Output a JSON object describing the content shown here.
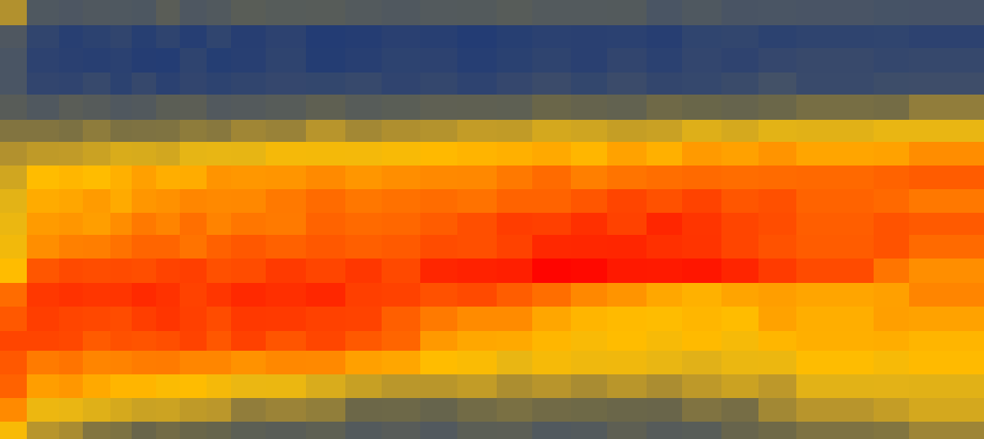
{
  "chart_data": {
    "type": "heatmap",
    "title": "",
    "xlabel": "",
    "ylabel": "",
    "legend": "none",
    "grid": false,
    "n_cols": 26,
    "n_rows": 19,
    "grid_dims": [
      26,
      19
    ],
    "color_stops": [
      {
        "v": 0.0,
        "hex": "#233C74"
      },
      {
        "v": 0.18,
        "hex": "#4A5564"
      },
      {
        "v": 0.32,
        "hex": "#6A6649"
      },
      {
        "v": 0.45,
        "hex": "#B8952C"
      },
      {
        "v": 0.55,
        "hex": "#E8B614"
      },
      {
        "v": 0.62,
        "hex": "#FFBC00"
      },
      {
        "v": 0.72,
        "hex": "#FF9400"
      },
      {
        "v": 0.82,
        "hex": "#FF6200"
      },
      {
        "v": 0.92,
        "hex": "#FF3200"
      },
      {
        "v": 1.0,
        "hex": "#FF0000"
      }
    ],
    "rows": [
      {
        "left": 0.44,
        "peaks": [
          [
            0.0,
            0.22
          ],
          [
            0.5,
            0.22
          ],
          [
            1.0,
            0.17
          ]
        ]
      },
      {
        "left": 0.2,
        "peaks": [
          [
            0.0,
            0.05
          ],
          [
            0.5,
            0.02
          ],
          [
            1.0,
            0.06
          ]
        ]
      },
      {
        "left": 0.18,
        "peaks": [
          [
            0.0,
            0.04
          ],
          [
            0.5,
            0.02
          ],
          [
            1.0,
            0.08
          ]
        ]
      },
      {
        "left": 0.18,
        "peaks": [
          [
            0.0,
            0.07
          ],
          [
            0.5,
            0.06
          ],
          [
            1.0,
            0.14
          ]
        ]
      },
      {
        "left": 0.24,
        "peaks": [
          [
            0.0,
            0.22
          ],
          [
            0.5,
            0.26
          ],
          [
            1.0,
            0.36
          ]
        ]
      },
      {
        "left": 0.36,
        "peaks": [
          [
            0.0,
            0.34
          ],
          [
            0.5,
            0.44
          ],
          [
            1.0,
            0.58
          ]
        ]
      },
      {
        "left": 0.44,
        "peaks": [
          [
            0.0,
            0.45
          ],
          [
            0.5,
            0.62
          ],
          [
            1.0,
            0.72
          ]
        ]
      },
      {
        "left": 0.5,
        "peaks": [
          [
            0.0,
            0.62
          ],
          [
            0.5,
            0.76
          ],
          [
            1.0,
            0.84
          ]
        ]
      },
      {
        "left": 0.54,
        "peaks": [
          [
            0.0,
            0.66
          ],
          [
            0.5,
            0.8
          ],
          [
            0.8,
            0.88
          ],
          [
            1.0,
            0.8
          ]
        ]
      },
      {
        "left": 0.56,
        "peaks": [
          [
            0.0,
            0.7
          ],
          [
            0.5,
            0.84
          ],
          [
            0.75,
            0.92
          ],
          [
            1.0,
            0.82
          ]
        ]
      },
      {
        "left": 0.58,
        "peaks": [
          [
            0.0,
            0.76
          ],
          [
            0.5,
            0.86
          ],
          [
            0.75,
            0.95
          ],
          [
            1.0,
            0.82
          ]
        ]
      },
      {
        "left": 0.62,
        "peaks": [
          [
            0.0,
            0.84
          ],
          [
            0.5,
            0.9
          ],
          [
            0.65,
            1.0
          ],
          [
            0.8,
            0.96
          ],
          [
            1.0,
            0.76
          ]
        ]
      },
      {
        "left": 0.8,
        "peaks": [
          [
            0.0,
            0.9
          ],
          [
            0.45,
            0.92
          ],
          [
            0.6,
            0.84
          ],
          [
            0.75,
            0.66
          ],
          [
            1.0,
            0.72
          ]
        ]
      },
      {
        "left": 0.84,
        "peaks": [
          [
            0.0,
            0.9
          ],
          [
            0.45,
            0.88
          ],
          [
            0.55,
            0.76
          ],
          [
            0.7,
            0.62
          ],
          [
            1.0,
            0.68
          ]
        ]
      },
      {
        "left": 0.88,
        "peaks": [
          [
            0.0,
            0.86
          ],
          [
            0.45,
            0.86
          ],
          [
            0.55,
            0.68
          ],
          [
            0.65,
            0.6
          ],
          [
            1.0,
            0.64
          ]
        ]
      },
      {
        "left": 0.84,
        "peaks": [
          [
            0.0,
            0.78
          ],
          [
            0.4,
            0.72
          ],
          [
            0.55,
            0.58
          ],
          [
            0.75,
            0.54
          ],
          [
            1.0,
            0.62
          ]
        ]
      },
      {
        "left": 0.82,
        "peaks": [
          [
            0.0,
            0.7
          ],
          [
            0.3,
            0.58
          ],
          [
            0.5,
            0.46
          ],
          [
            0.8,
            0.44
          ],
          [
            1.0,
            0.56
          ]
        ]
      },
      {
        "left": 0.74,
        "peaks": [
          [
            0.0,
            0.58
          ],
          [
            0.25,
            0.44
          ],
          [
            0.5,
            0.32
          ],
          [
            0.8,
            0.34
          ],
          [
            1.0,
            0.48
          ]
        ]
      },
      {
        "left": 0.6,
        "peaks": [
          [
            0.0,
            0.42
          ],
          [
            0.25,
            0.3
          ],
          [
            0.5,
            0.22
          ],
          [
            0.8,
            0.26
          ],
          [
            1.0,
            0.4
          ]
        ]
      }
    ]
  }
}
